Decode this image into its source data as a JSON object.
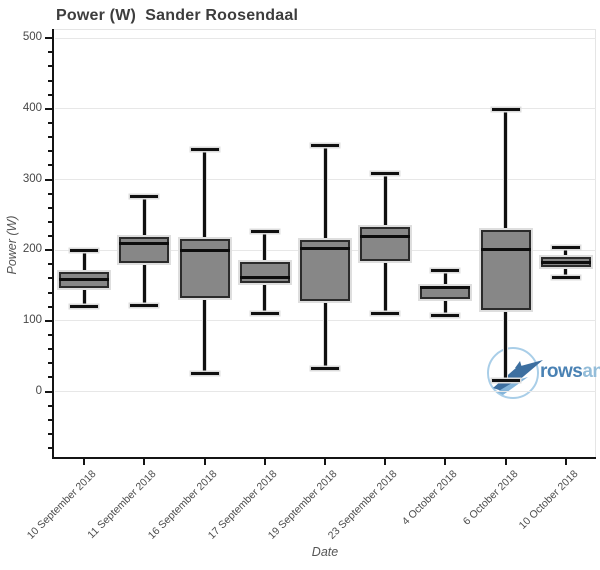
{
  "chart": {
    "title": "Power (W)  Sander Roosendaal",
    "xlabel": "Date",
    "ylabel": "Power (W)"
  },
  "chart_data": {
    "type": "box",
    "title": "Power (W)  Sander Roosendaal",
    "xlabel": "Date",
    "ylabel": "Power (W)",
    "ylim": [
      -94,
      513
    ],
    "y_major_ticks": [
      0,
      100,
      200,
      300,
      400,
      500
    ],
    "y_minor_step": 20,
    "grid": "horizontal-only",
    "legend": "none",
    "categories": [
      "10 September 2018",
      "11 September 2018",
      "16 September 2018",
      "17 September 2018",
      "19 September 2018",
      "23 September 2018",
      "4 October 2018",
      "6 October 2018",
      "10 October 2018"
    ],
    "series": [
      {
        "category": "10 September 2018",
        "low": 120,
        "q1": 146,
        "median": 158,
        "q3": 169,
        "high": 200
      },
      {
        "category": "11 September 2018",
        "low": 122,
        "q1": 182,
        "median": 209,
        "q3": 218,
        "high": 276
      },
      {
        "category": "16 September 2018",
        "low": 26,
        "q1": 132,
        "median": 200,
        "q3": 216,
        "high": 343
      },
      {
        "category": "17 September 2018",
        "low": 110,
        "q1": 154,
        "median": 162,
        "q3": 183,
        "high": 226
      },
      {
        "category": "19 September 2018",
        "low": 33,
        "q1": 128,
        "median": 202,
        "q3": 215,
        "high": 348
      },
      {
        "category": "23 September 2018",
        "low": 110,
        "q1": 185,
        "median": 220,
        "q3": 233,
        "high": 308
      },
      {
        "category": "4 October 2018",
        "low": 108,
        "q1": 131,
        "median": 147,
        "q3": 149,
        "high": 172
      },
      {
        "category": "6 October 2018",
        "low": 15,
        "q1": 116,
        "median": 201,
        "q3": 229,
        "high": 399
      },
      {
        "category": "10 October 2018",
        "low": 162,
        "q1": 176,
        "median": 183,
        "q3": 190,
        "high": 204
      }
    ]
  },
  "watermark": {
    "text_bold": "rows",
    "text_light": "an"
  },
  "colors": {
    "box_fill": "#878787",
    "box_border": "#2b2b2b",
    "median_line": "#0d0d0d",
    "whisker": "#101010",
    "whisker_halo": "#dcdcdc",
    "gridline": "#e7e7e7",
    "axis_line": "#141414",
    "title_text": "#3d3d3d",
    "tick_label_text": "#474747",
    "axis_label_text": "#555555",
    "logo_text_bold": "#4a82b4",
    "logo_text_light": "#94bdd9",
    "logo_circle": "#a9cee8",
    "logo_boat_dark": "#3d6fa0",
    "logo_boat_light": "#84b5da"
  }
}
